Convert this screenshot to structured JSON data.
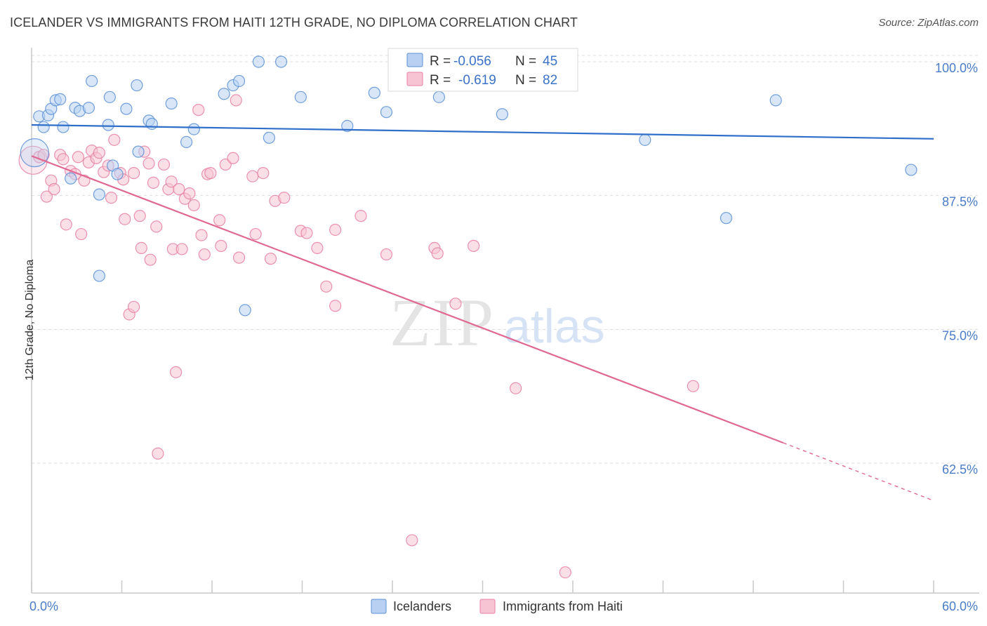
{
  "title": "ICELANDER VS IMMIGRANTS FROM HAITI 12TH GRADE, NO DIPLOMA CORRELATION CHART",
  "source": "Source: ZipAtlas.com",
  "watermark": {
    "zip": "ZIP",
    "atlas": "atlas"
  },
  "colors": {
    "blue": "#5b8fd6",
    "blue_fill": "#b8d1f2",
    "blue_line": "#2f6fc9",
    "pink": "#e87fa3",
    "pink_fill": "#f7c4d4",
    "pink_line": "#e06893",
    "axis_text": "#4a7cc7",
    "grid": "#dcdcdc"
  },
  "legend_stats": [
    {
      "series": "Icelanders",
      "r_label": "R =",
      "r_value": "-0.056",
      "n_label": "N =",
      "n_value": "45"
    },
    {
      "series": "Immigrants from Haiti",
      "r_label": "R =",
      "r_value": "-0.619",
      "n_label": "N =",
      "n_value": "82"
    }
  ],
  "chart_data": {
    "type": "scatter",
    "xlabel": "",
    "ylabel": "12th Grade, No Diploma",
    "xlim": [
      0,
      60
    ],
    "ylim": [
      53,
      101.5
    ],
    "x_tick_labels": [
      {
        "value": 0,
        "label": "0.0%"
      },
      {
        "value": 60,
        "label": "60.0%"
      }
    ],
    "y_tick_labels": [
      {
        "value": 100,
        "label": "100.0%"
      },
      {
        "value": 87.5,
        "label": "87.5%"
      },
      {
        "value": 75,
        "label": "75.0%"
      },
      {
        "value": 62.5,
        "label": "62.5%"
      }
    ],
    "grid": true,
    "legend": "bottom-center",
    "series": [
      {
        "name": "Icelanders",
        "color": "#5b8fd6",
        "trend": {
          "x": [
            0,
            60
          ],
          "y": [
            94.1,
            92.8
          ]
        },
        "points": [
          {
            "x": 0.2,
            "y": 91.5,
            "big": true
          },
          {
            "x": 0.5,
            "y": 94.9
          },
          {
            "x": 0.8,
            "y": 93.9
          },
          {
            "x": 1.1,
            "y": 95.0
          },
          {
            "x": 1.3,
            "y": 95.6
          },
          {
            "x": 1.6,
            "y": 96.4
          },
          {
            "x": 1.9,
            "y": 96.5
          },
          {
            "x": 2.1,
            "y": 93.9
          },
          {
            "x": 2.6,
            "y": 89.1
          },
          {
            "x": 2.9,
            "y": 95.7
          },
          {
            "x": 3.2,
            "y": 95.4
          },
          {
            "x": 3.8,
            "y": 95.7
          },
          {
            "x": 4.0,
            "y": 98.2
          },
          {
            "x": 4.5,
            "y": 87.6
          },
          {
            "x": 4.5,
            "y": 80.0
          },
          {
            "x": 5.1,
            "y": 94.1
          },
          {
            "x": 5.2,
            "y": 96.7
          },
          {
            "x": 5.4,
            "y": 90.3
          },
          {
            "x": 5.7,
            "y": 89.5
          },
          {
            "x": 6.3,
            "y": 95.6
          },
          {
            "x": 7.0,
            "y": 97.8
          },
          {
            "x": 7.1,
            "y": 91.6
          },
          {
            "x": 7.8,
            "y": 94.5
          },
          {
            "x": 8.0,
            "y": 94.2
          },
          {
            "x": 9.3,
            "y": 96.1
          },
          {
            "x": 10.3,
            "y": 92.5
          },
          {
            "x": 10.8,
            "y": 93.7
          },
          {
            "x": 12.8,
            "y": 97.0
          },
          {
            "x": 13.4,
            "y": 97.8
          },
          {
            "x": 13.8,
            "y": 98.2
          },
          {
            "x": 14.2,
            "y": 76.8
          },
          {
            "x": 15.1,
            "y": 100.0
          },
          {
            "x": 15.8,
            "y": 92.9
          },
          {
            "x": 16.6,
            "y": 100.0
          },
          {
            "x": 17.9,
            "y": 96.7
          },
          {
            "x": 21.0,
            "y": 94.0
          },
          {
            "x": 22.8,
            "y": 97.1
          },
          {
            "x": 23.6,
            "y": 95.3
          },
          {
            "x": 27.1,
            "y": 96.7
          },
          {
            "x": 31.3,
            "y": 95.1
          },
          {
            "x": 40.8,
            "y": 92.7
          },
          {
            "x": 46.2,
            "y": 85.4
          },
          {
            "x": 49.5,
            "y": 96.4
          },
          {
            "x": 58.5,
            "y": 89.9
          }
        ]
      },
      {
        "name": "Immigrants from Haiti",
        "color": "#e87fa3",
        "trend": {
          "x": [
            0,
            50
          ],
          "y": [
            91.2,
            64.4
          ],
          "dash_to": {
            "x": 60,
            "y": 59.0
          }
        },
        "points": [
          {
            "x": 0.1,
            "y": 90.8,
            "big": true
          },
          {
            "x": 0.5,
            "y": 91.1
          },
          {
            "x": 0.8,
            "y": 91.3
          },
          {
            "x": 1.0,
            "y": 87.4
          },
          {
            "x": 1.3,
            "y": 88.9
          },
          {
            "x": 1.5,
            "y": 88.1
          },
          {
            "x": 1.9,
            "y": 91.3
          },
          {
            "x": 2.1,
            "y": 90.9
          },
          {
            "x": 2.3,
            "y": 84.8
          },
          {
            "x": 2.6,
            "y": 89.8
          },
          {
            "x": 2.9,
            "y": 89.5
          },
          {
            "x": 3.1,
            "y": 91.1
          },
          {
            "x": 3.3,
            "y": 83.9
          },
          {
            "x": 3.5,
            "y": 88.9
          },
          {
            "x": 3.8,
            "y": 90.6
          },
          {
            "x": 4.0,
            "y": 91.7
          },
          {
            "x": 4.3,
            "y": 91.0
          },
          {
            "x": 4.5,
            "y": 91.5
          },
          {
            "x": 4.8,
            "y": 89.7
          },
          {
            "x": 5.1,
            "y": 90.3
          },
          {
            "x": 5.3,
            "y": 87.3
          },
          {
            "x": 5.5,
            "y": 92.7
          },
          {
            "x": 5.9,
            "y": 89.6
          },
          {
            "x": 6.1,
            "y": 89.0
          },
          {
            "x": 6.2,
            "y": 85.3
          },
          {
            "x": 6.5,
            "y": 76.4
          },
          {
            "x": 6.8,
            "y": 89.6
          },
          {
            "x": 6.8,
            "y": 77.1
          },
          {
            "x": 7.2,
            "y": 85.6
          },
          {
            "x": 7.3,
            "y": 82.6
          },
          {
            "x": 7.5,
            "y": 91.6
          },
          {
            "x": 7.8,
            "y": 90.5
          },
          {
            "x": 7.9,
            "y": 81.5
          },
          {
            "x": 8.1,
            "y": 88.7
          },
          {
            "x": 8.3,
            "y": 84.6
          },
          {
            "x": 8.4,
            "y": 63.4
          },
          {
            "x": 8.8,
            "y": 90.4
          },
          {
            "x": 9.1,
            "y": 88.1
          },
          {
            "x": 9.3,
            "y": 88.8
          },
          {
            "x": 9.4,
            "y": 82.5
          },
          {
            "x": 9.6,
            "y": 71.0
          },
          {
            "x": 9.8,
            "y": 88.1
          },
          {
            "x": 10.0,
            "y": 82.5
          },
          {
            "x": 10.2,
            "y": 87.2
          },
          {
            "x": 10.5,
            "y": 87.7
          },
          {
            "x": 10.8,
            "y": 86.6
          },
          {
            "x": 11.1,
            "y": 95.5
          },
          {
            "x": 11.3,
            "y": 83.8
          },
          {
            "x": 11.5,
            "y": 82.0
          },
          {
            "x": 11.7,
            "y": 89.5
          },
          {
            "x": 11.9,
            "y": 89.6
          },
          {
            "x": 12.5,
            "y": 85.2
          },
          {
            "x": 12.6,
            "y": 82.8
          },
          {
            "x": 12.9,
            "y": 90.4
          },
          {
            "x": 13.4,
            "y": 91.0
          },
          {
            "x": 13.6,
            "y": 96.4
          },
          {
            "x": 13.8,
            "y": 81.7
          },
          {
            "x": 14.7,
            "y": 89.3
          },
          {
            "x": 14.9,
            "y": 83.9
          },
          {
            "x": 15.4,
            "y": 89.6
          },
          {
            "x": 15.9,
            "y": 81.6
          },
          {
            "x": 16.2,
            "y": 87.0
          },
          {
            "x": 16.8,
            "y": 87.3
          },
          {
            "x": 17.9,
            "y": 84.2
          },
          {
            "x": 18.3,
            "y": 84.0
          },
          {
            "x": 19.0,
            "y": 82.6
          },
          {
            "x": 19.6,
            "y": 79.0
          },
          {
            "x": 20.2,
            "y": 84.3
          },
          {
            "x": 20.2,
            "y": 77.2
          },
          {
            "x": 21.9,
            "y": 85.6
          },
          {
            "x": 23.6,
            "y": 82.0
          },
          {
            "x": 25.3,
            "y": 55.3
          },
          {
            "x": 26.8,
            "y": 82.6
          },
          {
            "x": 27.0,
            "y": 82.1
          },
          {
            "x": 28.2,
            "y": 77.4
          },
          {
            "x": 29.4,
            "y": 82.8
          },
          {
            "x": 32.2,
            "y": 69.5
          },
          {
            "x": 35.5,
            "y": 52.3
          },
          {
            "x": 44.0,
            "y": 69.7
          }
        ]
      }
    ]
  }
}
